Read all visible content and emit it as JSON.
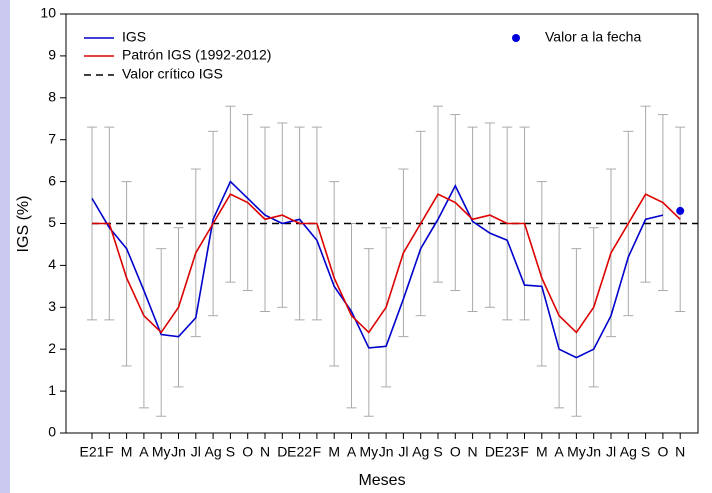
{
  "chart_data": {
    "type": "line",
    "x_label": "Meses",
    "y_label": "IGS (%)",
    "categories": [
      "E21",
      "F",
      "M",
      "A",
      "My",
      "Jn",
      "Jl",
      "Ag",
      "S",
      "O",
      "N",
      "D",
      "E22",
      "F",
      "M",
      "A",
      "My",
      "Jn",
      "Jl",
      "Ag",
      "S",
      "O",
      "N",
      "D",
      "E23",
      "F",
      "M",
      "A",
      "My",
      "Jn",
      "Jl",
      "Ag",
      "S",
      "O",
      "N"
    ],
    "ylim": [
      0,
      10
    ],
    "yticks": [
      0,
      1,
      2,
      3,
      4,
      5,
      6,
      7,
      8,
      9,
      10
    ],
    "series": [
      {
        "name": "IGS",
        "color": "#0000cc",
        "style": "line",
        "values": [
          5.6,
          4.9,
          4.4,
          3.4,
          2.35,
          2.3,
          2.75,
          5.1,
          6.0,
          5.6,
          5.2,
          5.0,
          5.1,
          4.6,
          3.5,
          2.9,
          2.03,
          2.07,
          3.2,
          4.4,
          5.1,
          5.9,
          5.05,
          4.77,
          4.6,
          3.53,
          3.5,
          2.0,
          1.8,
          2.0,
          2.8,
          4.2,
          5.1,
          5.2,
          null
        ]
      },
      {
        "name": "Patrón IGS (1992-2012)",
        "color": "#dd0000",
        "style": "line",
        "values": [
          5.0,
          5.0,
          3.7,
          2.8,
          2.4,
          3.0,
          4.3,
          5.0,
          5.7,
          5.5,
          5.1,
          5.2,
          5.0,
          5.0,
          3.7,
          2.8,
          2.4,
          3.0,
          4.3,
          5.0,
          5.7,
          5.5,
          5.1,
          5.2,
          5.0,
          5.0,
          3.7,
          2.8,
          2.4,
          3.0,
          4.3,
          5.0,
          5.7,
          5.5,
          5.1
        ]
      },
      {
        "name": "Valor a la fecha",
        "color": "#0000dd",
        "style": "marker",
        "values": [
          null,
          null,
          null,
          null,
          null,
          null,
          null,
          null,
          null,
          null,
          null,
          null,
          null,
          null,
          null,
          null,
          null,
          null,
          null,
          null,
          null,
          null,
          null,
          null,
          null,
          null,
          null,
          null,
          null,
          null,
          null,
          null,
          null,
          null,
          5.3
        ]
      }
    ],
    "threshold": {
      "name": "Valor crítico IGS",
      "value": 5,
      "color": "#000000"
    },
    "range_color": "#aaaaaa",
    "range_high": [
      7.3,
      7.3,
      6.0,
      5.0,
      4.4,
      4.9,
      6.3,
      7.2,
      7.8,
      7.6,
      7.3,
      7.4,
      7.3,
      7.3,
      6.0,
      5.0,
      4.4,
      4.9,
      6.3,
      7.2,
      7.8,
      7.6,
      7.3,
      7.4,
      7.3,
      7.3,
      6.0,
      5.0,
      4.4,
      4.9,
      6.3,
      7.2,
      7.8,
      7.6,
      7.3
    ],
    "range_low": [
      2.7,
      2.7,
      1.6,
      0.6,
      0.4,
      1.1,
      2.3,
      2.8,
      3.6,
      3.4,
      2.9,
      3.0,
      2.7,
      2.7,
      1.6,
      0.6,
      0.4,
      1.1,
      2.3,
      2.8,
      3.6,
      3.4,
      2.9,
      3.0,
      2.7,
      2.7,
      1.6,
      0.6,
      0.4,
      1.1,
      2.3,
      2.8,
      3.6,
      3.4,
      2.9
    ]
  }
}
